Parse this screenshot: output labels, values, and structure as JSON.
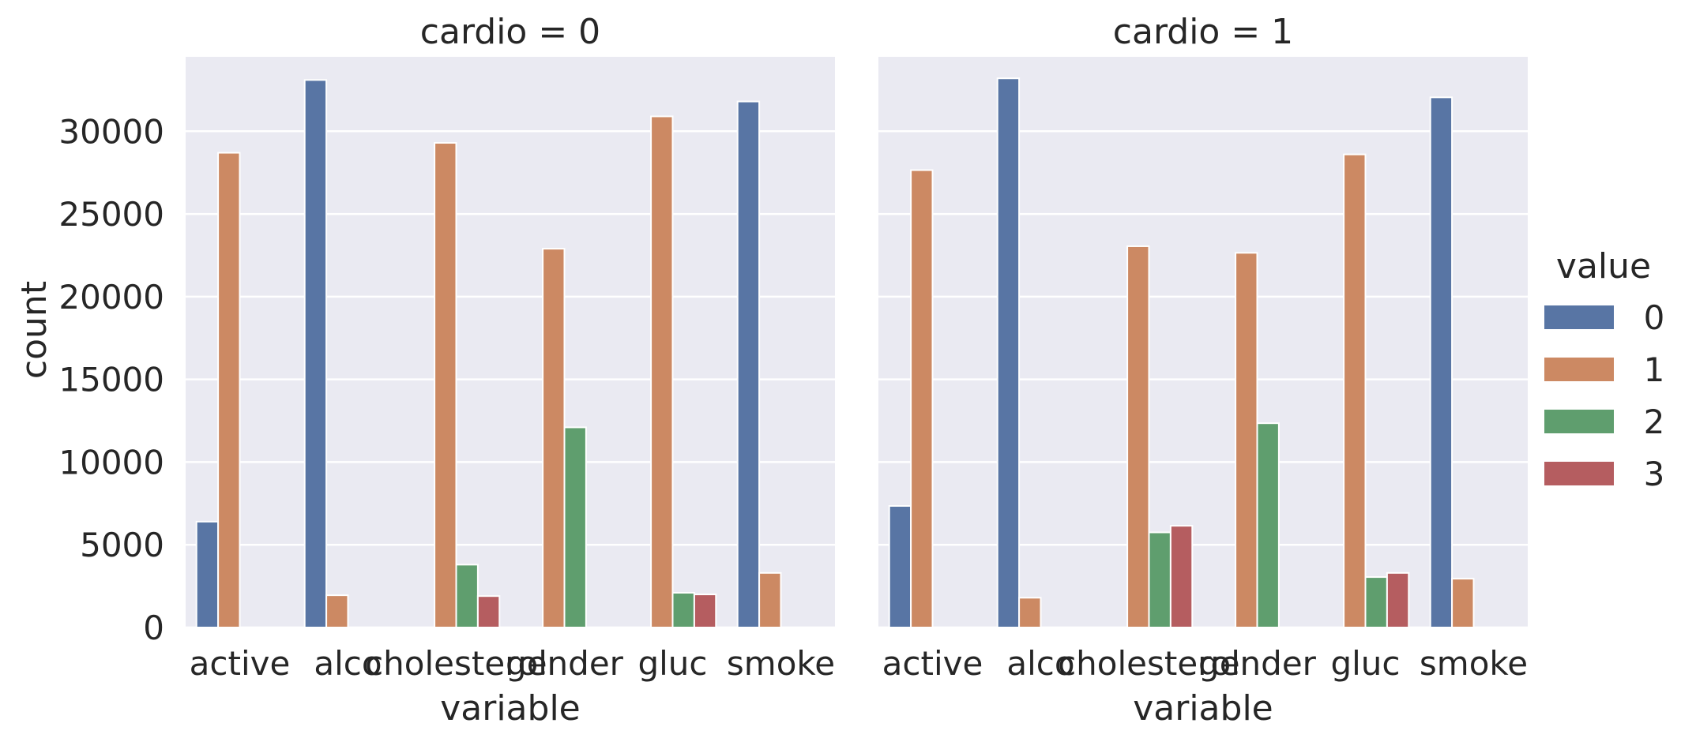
{
  "chart_data": {
    "type": "bar",
    "facet_variable": "cardio",
    "xlabel": "variable",
    "ylabel": "count",
    "ylim": [
      0,
      34500
    ],
    "yticks": [
      0,
      5000,
      10000,
      15000,
      20000,
      25000,
      30000
    ],
    "categories": [
      "active",
      "alco",
      "cholesterol",
      "gender",
      "gluc",
      "smoke"
    ],
    "hue_order": [
      "0",
      "1",
      "2",
      "3"
    ],
    "grid": true,
    "legend": {
      "title": "value",
      "placement": "right",
      "entries": [
        {
          "label": "0",
          "color": "#5875a4"
        },
        {
          "label": "1",
          "color": "#cc8963"
        },
        {
          "label": "2",
          "color": "#5f9e6e"
        },
        {
          "label": "3",
          "color": "#b55d60"
        }
      ]
    },
    "panels": [
      {
        "title": "cardio = 0",
        "series": [
          {
            "name": "0",
            "values": [
              6400,
              33100,
              null,
              null,
              null,
              31800
            ]
          },
          {
            "name": "1",
            "values": [
              28700,
              1950,
              29300,
              22900,
              30900,
              3300
            ]
          },
          {
            "name": "2",
            "values": [
              null,
              null,
              3800,
              12100,
              2100,
              null
            ]
          },
          {
            "name": "3",
            "values": [
              null,
              null,
              1900,
              null,
              2000,
              null
            ]
          }
        ]
      },
      {
        "title": "cardio = 1",
        "series": [
          {
            "name": "0",
            "values": [
              7350,
              33200,
              null,
              null,
              null,
              32050
            ]
          },
          {
            "name": "1",
            "values": [
              27650,
              1800,
              23050,
              22650,
              28600,
              2950
            ]
          },
          {
            "name": "2",
            "values": [
              null,
              null,
              5750,
              12350,
              3050,
              null
            ]
          },
          {
            "name": "3",
            "values": [
              null,
              null,
              6150,
              null,
              3300,
              null
            ]
          }
        ]
      }
    ]
  }
}
